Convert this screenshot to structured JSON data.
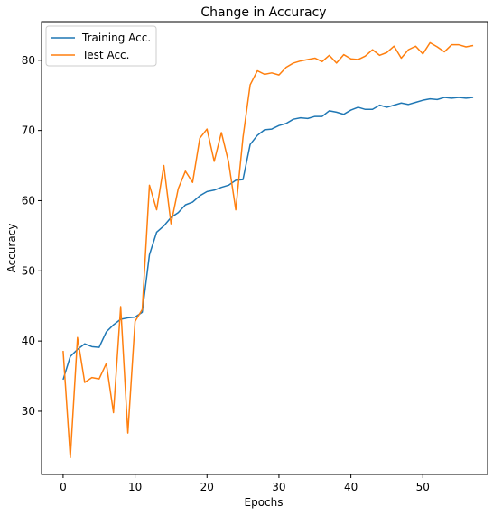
{
  "chart_data": {
    "type": "line",
    "title": "Change in Accuracy",
    "xlabel": "Epochs",
    "ylabel": "Accuracy",
    "xlim": [
      -3,
      59
    ],
    "ylim": [
      21,
      85.5
    ],
    "xticks": [
      0,
      10,
      20,
      30,
      40,
      50
    ],
    "yticks": [
      30,
      40,
      50,
      60,
      70,
      80
    ],
    "grid": false,
    "legend_position": "top-left",
    "x": [
      0,
      1,
      2,
      3,
      4,
      5,
      6,
      7,
      8,
      9,
      10,
      11,
      12,
      13,
      14,
      15,
      16,
      17,
      18,
      19,
      20,
      21,
      22,
      23,
      24,
      25,
      26,
      27,
      28,
      29,
      30,
      31,
      32,
      33,
      34,
      35,
      36,
      37,
      38,
      39,
      40,
      41,
      42,
      43,
      44,
      45,
      46,
      47,
      48,
      49,
      50,
      51,
      52,
      53,
      54,
      55,
      56,
      57
    ],
    "series": [
      {
        "name": "Training Acc.",
        "color": "#1f77b4",
        "values": [
          34.5,
          37.8,
          38.8,
          39.6,
          39.2,
          39.1,
          41.3,
          42.3,
          43.1,
          43.3,
          43.4,
          44.1,
          52.3,
          55.5,
          56.4,
          57.6,
          58.3,
          59.4,
          59.8,
          60.7,
          61.3,
          61.5,
          61.9,
          62.2,
          62.9,
          63.0,
          68.0,
          69.3,
          70.1,
          70.2,
          70.7,
          71.0,
          71.6,
          71.8,
          71.7,
          72.0,
          72.0,
          72.8,
          72.6,
          72.3,
          72.9,
          73.3,
          73.0,
          73.0,
          73.6,
          73.3,
          73.6,
          73.9,
          73.7,
          74.0,
          74.3,
          74.5,
          74.4,
          74.7,
          74.6,
          74.7,
          74.6,
          74.7
        ]
      },
      {
        "name": "Test Acc.",
        "color": "#ff7f0e",
        "values": [
          38.6,
          23.4,
          40.5,
          34.1,
          34.8,
          34.6,
          36.8,
          29.8,
          44.9,
          26.9,
          42.8,
          44.5,
          62.2,
          58.7,
          65.0,
          56.7,
          61.7,
          64.2,
          62.6,
          68.9,
          70.2,
          65.6,
          69.7,
          65.5,
          58.7,
          69.0,
          76.5,
          78.5,
          78.0,
          78.2,
          77.9,
          79.0,
          79.6,
          79.9,
          80.1,
          80.3,
          79.8,
          80.7,
          79.6,
          80.8,
          80.2,
          80.1,
          80.6,
          81.5,
          80.7,
          81.1,
          82.0,
          80.3,
          81.5,
          82.0,
          80.9,
          82.5,
          81.9,
          81.2,
          82.2,
          82.2,
          81.9,
          82.1
        ]
      }
    ]
  }
}
